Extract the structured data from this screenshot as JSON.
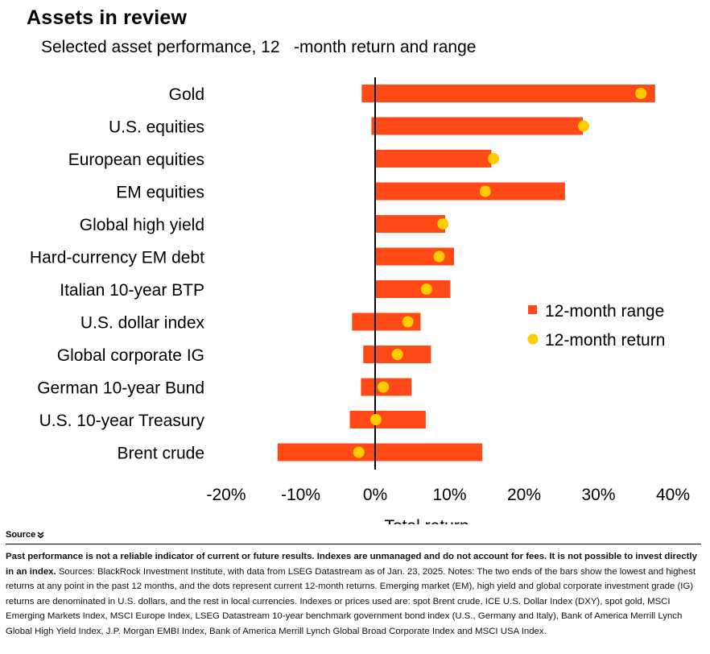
{
  "title": "Assets in review",
  "subtitle": "Selected asset performance, 12   -month return and range",
  "chart_data": {
    "type": "bar",
    "orientation": "horizontal",
    "title": "Assets in review",
    "subtitle": "Selected asset performance, 12   -month return and range",
    "xlabel": "Total return",
    "xlim": [
      -20,
      40
    ],
    "x_ticks": [
      "-20%",
      "-10%",
      "0%",
      "10%",
      "20%",
      "30%",
      "40%"
    ],
    "x_tick_values": [
      -20,
      -10,
      0,
      10,
      20,
      30,
      40
    ],
    "categories": [
      "Gold",
      "U.S. equities",
      "European equities",
      "EM equities",
      "Global high yield",
      "Hard-currency EM debt",
      "Italian 10-year BTP",
      "U.S. dollar index",
      "Global corporate IG",
      "German 10-year Bund",
      "U.S. 10-year Treasury",
      "Brent crude"
    ],
    "series": [
      {
        "name": "12-month range",
        "kind": "range",
        "color": "#ff4a17",
        "low": [
          -1.8,
          -0.5,
          0,
          0,
          0,
          0,
          0,
          -3.1,
          -1.6,
          -1.9,
          -3.4,
          -13.1
        ],
        "high": [
          37.6,
          27.9,
          15.6,
          25.5,
          9.4,
          10.6,
          10.1,
          6.1,
          7.5,
          4.9,
          6.8,
          14.4
        ]
      },
      {
        "name": "12-month return",
        "kind": "point",
        "color": "#ffcc00",
        "values": [
          35.7,
          28.0,
          15.9,
          14.8,
          9.1,
          8.6,
          6.9,
          4.4,
          3.0,
          1.1,
          0.1,
          -2.2
        ]
      }
    ],
    "legend": "right",
    "grid": false
  },
  "source": {
    "toggle_label": "Source",
    "toggle_icon": "double-chevron-down-icon",
    "bold_text": "Past performance is not a reliable indicator of current or future results. Indexes are unmanaged and do not account for fees. It is not possible to invest directly in an index.",
    "text": " Sources: BlackRock Investment Institute, with data from LSEG Datastream as of Jan. 23, 2025. Notes: The two ends of the bars show the lowest and highest returns at any point in the past 12 months, and the dots represent current 12-month returns. Emerging market (EM), high yield and global corporate investment grade (IG) returns are denominated in U.S. dollars, and the rest in local currencies. Indexes or prices used are: spot Brent crude, ICE U.S. Dollar Index (DXY), spot gold, MSCI Emerging Markets Index, MSCI Europe Index, LSEG Datastream 10-year benchmark government bond index (U.S., Germany and Italy), Bank of America Merrill Lynch Global High Yield Index, J.P. Morgan EMBI Index, Bank of America Merrill Lynch Global Broad Corporate Index and MSCI USA Index."
  }
}
